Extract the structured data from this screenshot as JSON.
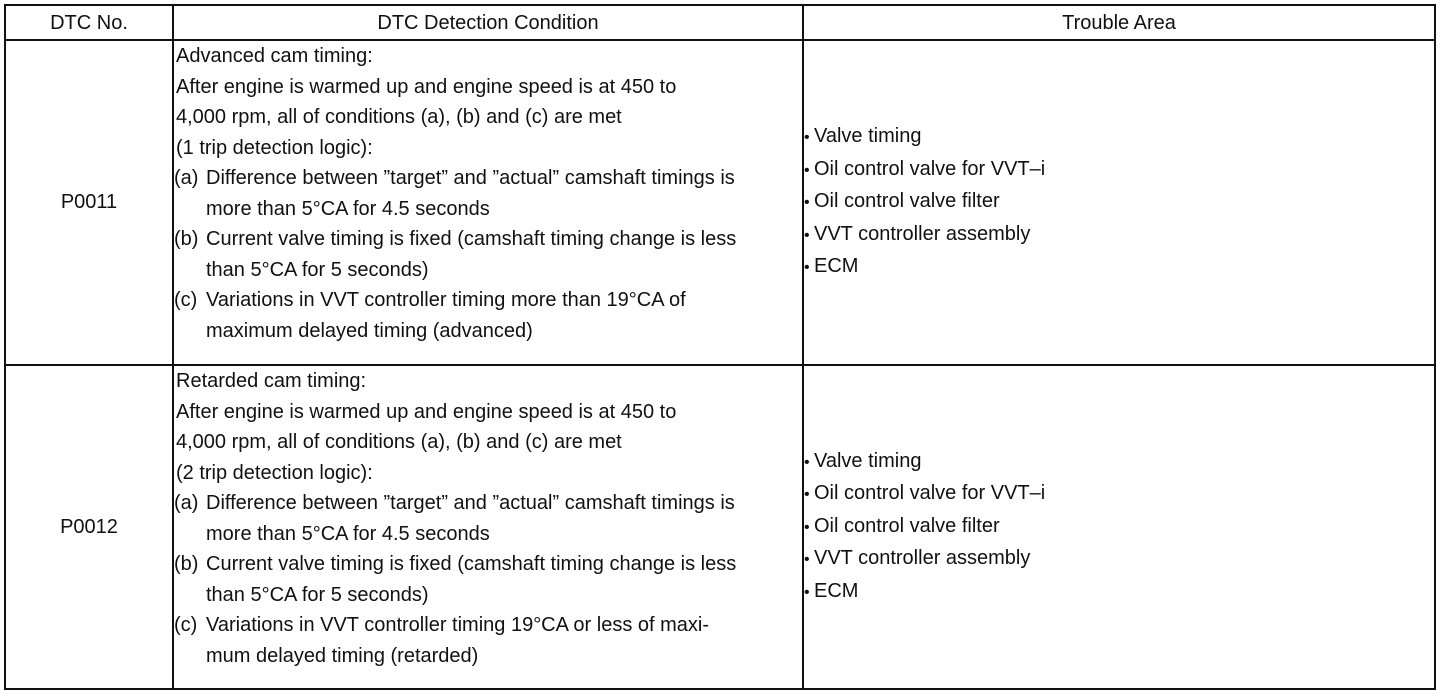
{
  "table": {
    "headers": {
      "dtc_no": "DTC No.",
      "condition": "DTC Detection Condition",
      "trouble_area": "Trouble Area"
    },
    "rows": [
      {
        "dtc_no": "P0011",
        "condition": {
          "intro": [
            "Advanced cam timing:",
            "After engine is warmed up and engine speed is at 450 to",
            "4,000 rpm, all of conditions (a), (b) and (c) are met",
            "(1 trip detection logic):"
          ],
          "items": [
            {
              "mark": "(a)",
              "line1": "Difference between ”target” and ”actual” camshaft timings is",
              "line2": "more than 5°CA for 4.5 seconds"
            },
            {
              "mark": "(b)",
              "line1": "Current valve timing is fixed (camshaft timing change is less",
              "line2": "than 5°CA for 5 seconds)"
            },
            {
              "mark": "(c)",
              "line1": "Variations in VVT controller timing more than 19°CA of",
              "line2": "maximum delayed timing (advanced)"
            }
          ]
        },
        "trouble_area": [
          "Valve timing",
          "Oil control valve for VVT–i",
          "Oil control valve filter",
          "VVT controller assembly",
          "ECM"
        ]
      },
      {
        "dtc_no": "P0012",
        "condition": {
          "intro": [
            "Retarded cam timing:",
            "After engine is warmed up and engine speed is at 450 to",
            "4,000 rpm, all of conditions (a), (b) and (c) are met",
            "(2 trip detection logic):"
          ],
          "items": [
            {
              "mark": "(a)",
              "line1": "Difference between ”target” and ”actual” camshaft timings is",
              "line2": "more than 5°CA for 4.5 seconds"
            },
            {
              "mark": "(b)",
              "line1": "Current valve timing is fixed (camshaft timing change is less",
              "line2": "than 5°CA for 5 seconds)"
            },
            {
              "mark": "(c)",
              "line1": "Variations in VVT controller timing 19°CA or less of maxi-",
              "line2": "mum delayed timing (retarded)"
            }
          ]
        },
        "trouble_area": [
          "Valve timing",
          "Oil control valve for VVT–i",
          "Oil control valve filter",
          "VVT controller assembly",
          "ECM"
        ]
      }
    ]
  }
}
